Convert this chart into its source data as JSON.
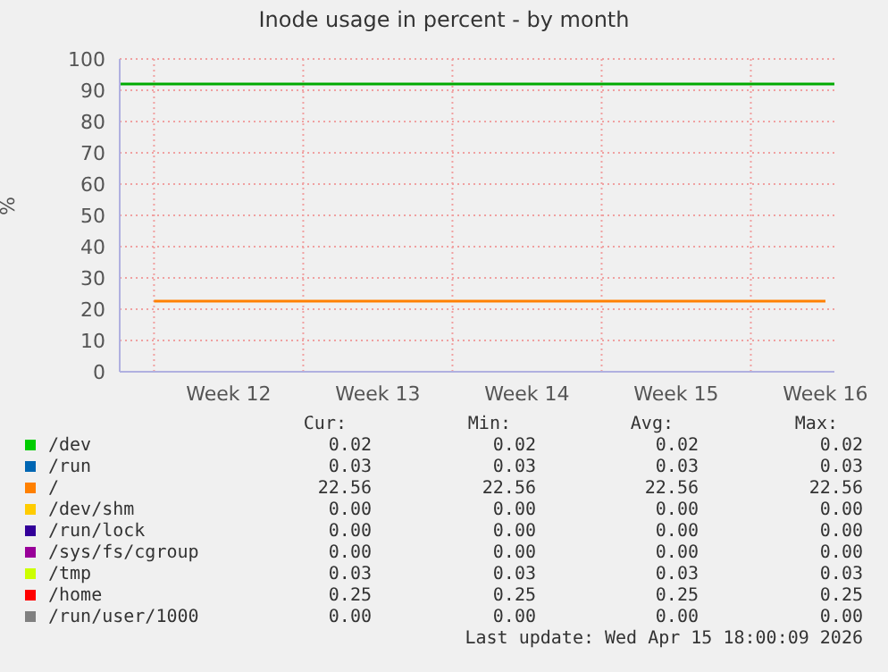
{
  "chart_data": {
    "type": "line",
    "title": "Inode usage in percent - by month",
    "ylabel": "%",
    "categories": [
      null,
      "Week 12",
      null,
      "Week 13",
      null,
      "Week 14",
      null,
      "Week 15",
      null,
      "Week 16"
    ],
    "ylim": [
      0,
      100
    ],
    "yticks": [
      0,
      10,
      20,
      30,
      40,
      50,
      60,
      70,
      80,
      90,
      100
    ],
    "grid": true,
    "legend": "bottom",
    "marker": "none",
    "line_style": "solid",
    "series": [
      {
        "name": "/dev",
        "color": "#00cc00",
        "values": [
          null,
          null,
          null,
          null,
          null,
          null,
          null,
          null,
          null,
          null
        ]
      },
      {
        "name": "/run",
        "color": "#0066b3",
        "values": [
          null,
          null,
          null,
          null,
          null,
          null,
          null,
          null,
          null,
          null
        ]
      },
      {
        "name": "/",
        "color": "#ff8000",
        "values": [
          22.56,
          22.56,
          22.56,
          22.56,
          22.56,
          22.56,
          22.56,
          22.56,
          22.56,
          22.56
        ]
      },
      {
        "name": "/dev/shm",
        "color": "#ffcc00",
        "values": [
          null,
          null,
          null,
          null,
          null,
          null,
          null,
          null,
          null,
          null
        ]
      },
      {
        "name": "/run/lock",
        "color": "#330099",
        "values": [
          null,
          null,
          null,
          null,
          null,
          null,
          null,
          null,
          null,
          null
        ]
      },
      {
        "name": "/sys/fs/cgroup",
        "color": "#990099",
        "values": [
          null,
          null,
          null,
          null,
          null,
          null,
          null,
          null,
          null,
          null
        ]
      },
      {
        "name": "/tmp",
        "color": "#ccff00",
        "values": [
          null,
          null,
          null,
          null,
          null,
          null,
          null,
          null,
          null,
          null
        ]
      },
      {
        "name": "/home",
        "color": "#ff0000",
        "values": [
          null,
          null,
          null,
          null,
          null,
          null,
          null,
          null,
          null,
          null
        ]
      },
      {
        "name": "/run/user/1000",
        "color": "#808080",
        "values": [
          null,
          null,
          null,
          null,
          null,
          null,
          null,
          null,
          null,
          null
        ]
      }
    ],
    "ref_lines": [
      {
        "axis": "y",
        "value": 92,
        "color": "#00aa00"
      }
    ],
    "annotations": [
      "Cur:",
      "Min:",
      "Avg:",
      "Max:",
      "0.02",
      "0.02",
      "0.02",
      "0.02",
      "0.03",
      "0.03",
      "0.03",
      "0.03",
      "22.56",
      "22.56",
      "22.56",
      "22.56",
      "0.00",
      "0.00",
      "0.00",
      "0.00",
      "0.00",
      "0.00",
      "0.00",
      "0.00",
      "0.00",
      "0.00",
      "0.00",
      "0.00",
      "0.03",
      "0.03",
      "0.03",
      "0.03",
      "0.25",
      "0.25",
      "0.25",
      "0.25",
      "0.00",
      "0.00",
      "0.00",
      "0.00",
      "Last update: Wed Apr 15 18:00:09 2026"
    ]
  }
}
